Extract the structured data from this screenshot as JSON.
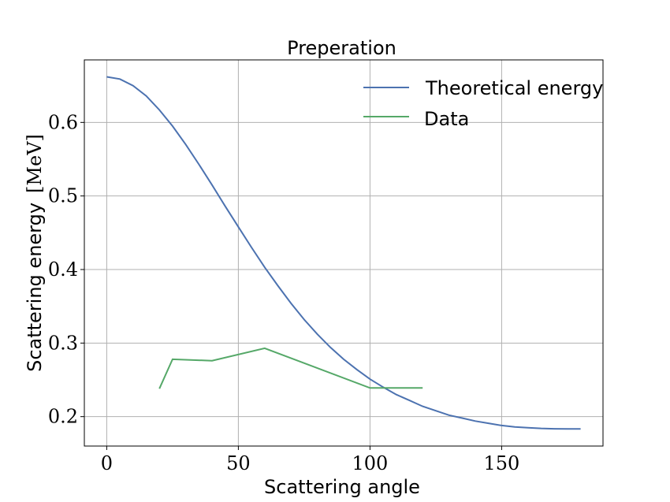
{
  "chart_data": {
    "type": "line",
    "title": "Preperation",
    "xlabel": "Scattering angle",
    "ylabel_text": "Scattering energy",
    "ylabel_unit": "[MeV]",
    "xlim": [
      -8.5,
      188.5
    ],
    "ylim": [
      0.16,
      0.685
    ],
    "xticks": [
      0,
      50,
      100,
      150
    ],
    "xtick_labels": [
      "0",
      "50",
      "100",
      "150"
    ],
    "yticks": [
      0.2,
      0.3,
      0.4,
      0.5,
      0.6
    ],
    "ytick_labels": [
      "0.2",
      "0.3",
      "0.4",
      "0.5",
      "0.6"
    ],
    "grid": true,
    "legend_position": "top-right",
    "series": [
      {
        "name": "Theoretical energy",
        "color": "#4c72b0",
        "x": [
          0,
          5,
          10,
          15,
          20,
          25,
          30,
          35,
          40,
          45,
          50,
          55,
          60,
          65,
          70,
          75,
          80,
          85,
          90,
          95,
          100,
          105,
          110,
          115,
          120,
          125,
          130,
          135,
          140,
          145,
          150,
          155,
          160,
          165,
          170,
          175,
          180
        ],
        "y": [
          0.662,
          0.659,
          0.65,
          0.636,
          0.617,
          0.595,
          0.57,
          0.543,
          0.515,
          0.486,
          0.458,
          0.43,
          0.403,
          0.378,
          0.354,
          0.332,
          0.312,
          0.294,
          0.278,
          0.264,
          0.251,
          0.24,
          0.23,
          0.222,
          0.214,
          0.208,
          0.202,
          0.198,
          0.194,
          0.191,
          0.188,
          0.186,
          0.185,
          0.184,
          0.1835,
          0.1833,
          0.1832
        ]
      },
      {
        "name": "Data",
        "color": "#55a868",
        "x": [
          20,
          25,
          40,
          60,
          100,
          120
        ],
        "y": [
          0.238,
          0.278,
          0.276,
          0.293,
          0.239,
          0.239
        ]
      }
    ]
  }
}
